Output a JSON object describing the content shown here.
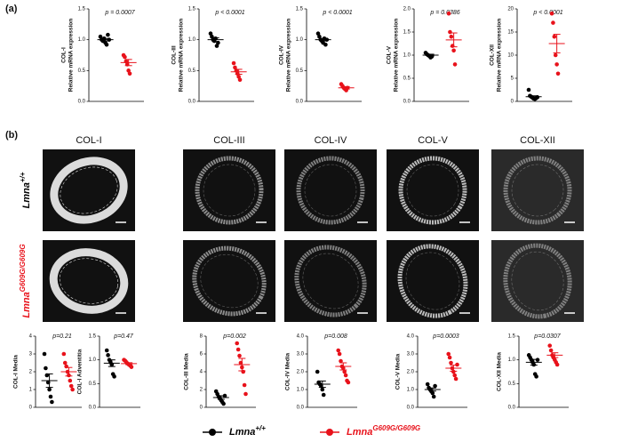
{
  "panel_labels": [
    "(a)",
    "(b)"
  ],
  "image_columns": [
    "COL-I",
    "COL-III",
    "COL-IV",
    "COL-V",
    "COL-XII"
  ],
  "groups": [
    {
      "name": "Lmna",
      "superscript": "+/+",
      "color": "#000000"
    },
    {
      "name": "Lmna",
      "superscript": "G609G/G609G",
      "color": "#e8121b"
    }
  ],
  "chart_data": [
    {
      "type": "dotplot",
      "ylabel": "COL-I",
      "ylabel2": "Relative mRNA expression",
      "pvalue": "p = 0.0007",
      "ylim": [
        0,
        1.5
      ],
      "yticks": [
        {
          "value": 0,
          "label": "0.0"
        },
        {
          "value": 0.5,
          "label": "0.5"
        },
        {
          "value": 1,
          "label": "1.0"
        },
        {
          "value": 1.5,
          "label": "1.5"
        }
      ],
      "series": [
        {
          "values": [
            1.05,
            1.0,
            0.98,
            1.02,
            0.95,
            0.92,
            1.08,
            1.0
          ],
          "mean": 1.0,
          "sem": 0.02
        },
        {
          "values": [
            0.75,
            0.72,
            0.65,
            0.6,
            0.5,
            0.45
          ],
          "mean": 0.63,
          "sem": 0.05
        }
      ]
    },
    {
      "type": "dotplot",
      "ylabel": "COL-III",
      "ylabel2": "Relative mRNA expression",
      "pvalue": "p < 0.0001",
      "ylim": [
        0,
        1.5
      ],
      "yticks": [
        {
          "value": 0,
          "label": "0.0"
        },
        {
          "value": 0.5,
          "label": "0.5"
        },
        {
          "value": 1,
          "label": "1.0"
        },
        {
          "value": 1.5,
          "label": "1.5"
        }
      ],
      "series": [
        {
          "values": [
            1.1,
            1.05,
            1.0,
            0.98,
            1.02,
            0.9,
            0.95
          ],
          "mean": 1.0,
          "sem": 0.03
        },
        {
          "values": [
            0.62,
            0.55,
            0.5,
            0.45,
            0.4,
            0.35
          ],
          "mean": 0.48,
          "sem": 0.04
        }
      ]
    },
    {
      "type": "dotplot",
      "ylabel": "COL-IV",
      "ylabel2": "Relative mRNA expression",
      "pvalue": "p < 0.0001",
      "ylim": [
        0,
        1.5
      ],
      "yticks": [
        {
          "value": 0,
          "label": "0.0"
        },
        {
          "value": 0.5,
          "label": "0.5"
        },
        {
          "value": 1,
          "label": "1.0"
        },
        {
          "value": 1.5,
          "label": "1.5"
        }
      ],
      "series": [
        {
          "values": [
            1.1,
            1.05,
            1.0,
            0.98,
            0.95,
            1.02,
            0.92,
            1.0
          ],
          "mean": 1.0,
          "sem": 0.02
        },
        {
          "values": [
            0.28,
            0.25,
            0.22,
            0.2,
            0.18,
            0.22
          ],
          "mean": 0.22,
          "sem": 0.02
        }
      ]
    },
    {
      "type": "dotplot",
      "ylabel": "COL-V",
      "ylabel2": "Relative mRNA expression",
      "pvalue": "p = 0.0386",
      "ylim": [
        0,
        2
      ],
      "yticks": [
        {
          "value": 0,
          "label": "0.0"
        },
        {
          "value": 0.5,
          "label": "0.5"
        },
        {
          "value": 1,
          "label": "1.0"
        },
        {
          "value": 1.5,
          "label": "1.5"
        },
        {
          "value": 2,
          "label": "2.0"
        }
      ],
      "series": [
        {
          "values": [
            1.05,
            1.02,
            1.0,
            0.98,
            0.95,
            0.97
          ],
          "mean": 1.0,
          "sem": 0.02
        },
        {
          "values": [
            1.9,
            1.5,
            1.4,
            1.2,
            1.1,
            0.8
          ],
          "mean": 1.33,
          "sem": 0.15
        }
      ]
    },
    {
      "type": "dotplot",
      "ylabel": "COL-XII",
      "ylabel2": "Relative mRNA expression",
      "pvalue": "p < 0.0001",
      "ylim": [
        0,
        20
      ],
      "yticks": [
        0,
        5,
        10,
        15,
        20
      ],
      "series": [
        {
          "values": [
            2.5,
            1.2,
            1.0,
            0.8,
            0.6,
            0.5,
            0.7,
            0.9
          ],
          "mean": 1.0,
          "sem": 0.2
        },
        {
          "values": [
            19,
            17,
            14,
            10,
            8,
            6
          ],
          "mean": 12.5,
          "sem": 2
        }
      ]
    },
    {
      "type": "dotplot",
      "ylabel": "COL-I Media",
      "pvalue": "p=0.21",
      "ylim": [
        0,
        4
      ],
      "yticks": [
        0,
        1,
        2,
        3,
        4
      ],
      "series": [
        {
          "values": [
            3.0,
            2.2,
            1.8,
            1.4,
            1.0,
            0.6,
            0.3
          ],
          "mean": 1.5,
          "sem": 0.38
        },
        {
          "values": [
            3.0,
            2.5,
            2.3,
            2.0,
            1.8,
            1.5,
            1.2,
            1.0
          ],
          "mean": 2.0,
          "sem": 0.24
        }
      ]
    },
    {
      "type": "dotplot",
      "ylabel": "COL-I Adventitia",
      "pvalue": "p=0.47",
      "ylim": [
        0,
        1.5
      ],
      "yticks": [
        {
          "value": 0,
          "label": "0.0"
        },
        {
          "value": 0.5,
          "label": "0.5"
        },
        {
          "value": 1,
          "label": "1.0"
        },
        {
          "value": 1.5,
          "label": "1.5"
        }
      ],
      "series": [
        {
          "values": [
            1.2,
            1.1,
            1.0,
            0.95,
            0.9,
            0.7,
            0.65
          ],
          "mean": 0.93,
          "sem": 0.07
        },
        {
          "values": [
            1.0,
            0.98,
            0.95,
            0.92,
            0.9,
            0.88,
            0.85
          ],
          "mean": 0.92,
          "sem": 0.02
        }
      ]
    },
    {
      "type": "dotplot",
      "ylabel": "COL-III Media",
      "pvalue": "p=0.002",
      "ylim": [
        0,
        8
      ],
      "yticks": [
        0,
        2,
        4,
        6,
        8
      ],
      "series": [
        {
          "values": [
            1.8,
            1.5,
            1.2,
            1.0,
            0.8,
            0.6,
            0.4,
            1.3
          ],
          "mean": 1.1,
          "sem": 0.2
        },
        {
          "values": [
            7.2,
            6.5,
            5.8,
            5.0,
            4.5,
            4.0,
            2.5,
            1.5
          ],
          "mean": 4.8,
          "sem": 0.7
        }
      ]
    },
    {
      "type": "dotplot",
      "ylabel": "COL-IV Media",
      "pvalue": "p=0.008",
      "ylim": [
        0,
        4
      ],
      "yticks": [
        {
          "value": 0,
          "label": "0.0"
        },
        {
          "value": 1,
          "label": "1.0"
        },
        {
          "value": 2,
          "label": "2.0"
        },
        {
          "value": 3,
          "label": "3.0"
        },
        {
          "value": 4,
          "label": "4.0"
        }
      ],
      "series": [
        {
          "values": [
            2.0,
            1.4,
            1.3,
            1.2,
            1.0,
            0.7
          ],
          "mean": 1.3,
          "sem": 0.18
        },
        {
          "values": [
            3.2,
            3.0,
            2.6,
            2.3,
            2.2,
            2.0,
            1.8,
            1.5,
            1.4
          ],
          "mean": 2.3,
          "sem": 0.2
        }
      ]
    },
    {
      "type": "dotplot",
      "ylabel": "COL-V Media",
      "pvalue": "p=0.0003",
      "ylim": [
        0,
        4
      ],
      "yticks": [
        {
          "value": 0,
          "label": "0.0"
        },
        {
          "value": 1,
          "label": "1.0"
        },
        {
          "value": 2,
          "label": "2.0"
        },
        {
          "value": 3,
          "label": "3.0"
        },
        {
          "value": 4,
          "label": "4.0"
        }
      ],
      "series": [
        {
          "values": [
            1.3,
            1.1,
            1.0,
            0.9,
            0.8,
            0.6,
            1.2
          ],
          "mean": 1.0,
          "sem": 0.09
        },
        {
          "values": [
            3.0,
            2.8,
            2.5,
            2.2,
            2.0,
            1.8,
            1.6,
            2.4
          ],
          "mean": 2.2,
          "sem": 0.17
        }
      ]
    },
    {
      "type": "dotplot",
      "ylabel": "COL-XII Media",
      "pvalue": "p=0.0307",
      "ylim": [
        0,
        1.5
      ],
      "yticks": [
        {
          "value": 0,
          "label": "0.0"
        },
        {
          "value": 0.5,
          "label": "0.5"
        },
        {
          "value": 1,
          "label": "1.0"
        },
        {
          "value": 1.5,
          "label": "1.5"
        }
      ],
      "series": [
        {
          "values": [
            1.1,
            1.05,
            1.0,
            0.95,
            0.9,
            0.7,
            0.65,
            1.0
          ],
          "mean": 0.95,
          "sem": 0.06
        },
        {
          "values": [
            1.3,
            1.2,
            1.1,
            1.05,
            1.0,
            0.95,
            0.9
          ],
          "mean": 1.1,
          "sem": 0.05
        }
      ]
    }
  ]
}
